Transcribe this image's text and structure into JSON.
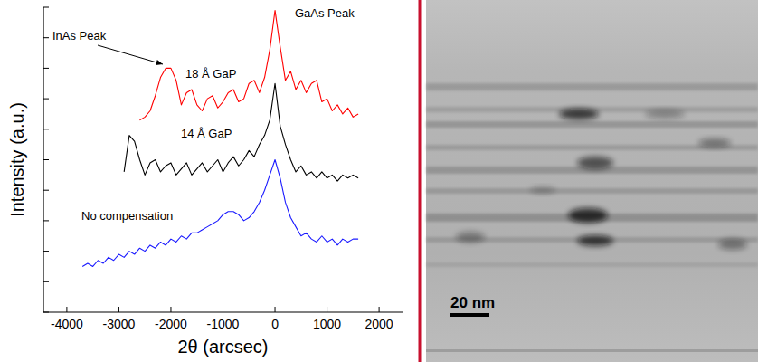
{
  "chart_data": {
    "type": "line",
    "x_label": "2θ (arcsec)",
    "y_label": "Intensity (a.u.)",
    "log": "y",
    "tick_labels": "x",
    "xlim": [
      -4450,
      2450
    ],
    "xticks": [
      -4000,
      -3000,
      -2000,
      -1000,
      0,
      1000,
      2000
    ],
    "ylim": [
      1,
      10000000000.0
    ],
    "yticks": [
      1,
      10,
      100,
      1000,
      10000,
      100000,
      1000000,
      10000000,
      100000000,
      1000000000,
      10000000000
    ],
    "annotations": [
      "InAs Peak",
      "GaAs Peak"
    ],
    "series": [
      {
        "name": "18 Å GaP",
        "color": "#ff0000",
        "x": [
          -2600,
          -2500,
          -2400,
          -2300,
          -2200,
          -2100,
          -2000,
          -1900,
          -1800,
          -1700,
          -1600,
          -1500,
          -1400,
          -1300,
          -1200,
          -1100,
          -1000,
          -900,
          -800,
          -700,
          -600,
          -500,
          -400,
          -300,
          -200,
          -100,
          0,
          100,
          200,
          300,
          400,
          500,
          600,
          700,
          800,
          900,
          1000,
          1100,
          1200,
          1300,
          1400,
          1500,
          1600
        ],
        "values": [
          2000000.0,
          2500000.0,
          4000000.0,
          12600000.0,
          50000000.0,
          100000000.0,
          100000000.0,
          40000000.0,
          6300000.0,
          15800000.0,
          20000000.0,
          6300000.0,
          4000000.0,
          10000000.0,
          12600000.0,
          5000000.0,
          7900000.0,
          15800000.0,
          20000000.0,
          7900000.0,
          10000000.0,
          31600000.0,
          40000000.0,
          15800000.0,
          50000000.0,
          400000000.0,
          7900000000.0,
          500000000.0,
          40000000.0,
          79000000.0,
          20000000.0,
          40000000.0,
          15800000.0,
          31600000.0,
          40000000.0,
          7900000.0,
          10000000.0,
          4000000.0,
          6300000.0,
          3160000.0,
          5000000.0,
          2500000.0,
          3160000.0
        ]
      },
      {
        "name": "14 Å GaP",
        "color": "#000000",
        "x": [
          -2900,
          -2800,
          -2700,
          -2600,
          -2500,
          -2400,
          -2300,
          -2200,
          -2100,
          -2000,
          -1900,
          -1800,
          -1700,
          -1600,
          -1500,
          -1400,
          -1300,
          -1200,
          -1100,
          -1000,
          -900,
          -800,
          -700,
          -600,
          -500,
          -400,
          -300,
          -200,
          -100,
          0,
          100,
          200,
          300,
          400,
          500,
          600,
          700,
          800,
          900,
          1000,
          1100,
          1200,
          1300,
          1400,
          1500,
          1600
        ],
        "values": [
          40000.0,
          630000.0,
          400000.0,
          100000.0,
          31600.0,
          79000.0,
          100000.0,
          40000.0,
          63000.0,
          79000.0,
          31600.0,
          50000.0,
          79000.0,
          31600.0,
          50000.0,
          79000.0,
          40000.0,
          63000.0,
          100000.0,
          40000.0,
          79000.0,
          126000.0,
          63000.0,
          100000.0,
          200000.0,
          126000.0,
          316000.0,
          630000.0,
          2000000.0,
          31600000.0,
          1260000.0,
          316000.0,
          100000.0,
          40000.0,
          63000.0,
          31600.0,
          40000.0,
          25000.0,
          40000.0,
          25000.0,
          31600.0,
          20000.0,
          31600.0,
          25000.0,
          31600.0,
          25000.0
        ]
      },
      {
        "name": "No compensation",
        "color": "#1a1aff",
        "x": [
          -3700,
          -3600,
          -3500,
          -3400,
          -3300,
          -3200,
          -3100,
          -3000,
          -2900,
          -2800,
          -2700,
          -2600,
          -2500,
          -2400,
          -2300,
          -2200,
          -2100,
          -2000,
          -1900,
          -1800,
          -1700,
          -1600,
          -1500,
          -1400,
          -1300,
          -1200,
          -1100,
          -1000,
          -900,
          -800,
          -700,
          -600,
          -500,
          -400,
          -300,
          -200,
          -100,
          0,
          100,
          200,
          300,
          400,
          500,
          600,
          700,
          800,
          900,
          1000,
          1100,
          1200,
          1300,
          1400,
          1500,
          1600
        ],
        "values": [
          31.6,
          40,
          31.6,
          50,
          40,
          63,
          50,
          79,
          63,
          100,
          79,
          126,
          100,
          158,
          126,
          200,
          158,
          251,
          200,
          316,
          251,
          398,
          398,
          501,
          631,
          794,
          1000,
          1585,
          1995,
          1995,
          1585,
          1000,
          1259,
          1995,
          3981,
          10000,
          31600,
          100000,
          25000,
          3981,
          1259,
          631,
          316,
          398,
          251,
          200,
          316,
          200,
          251,
          158,
          251,
          200,
          251,
          251
        ]
      }
    ]
  },
  "micrograph": {
    "scale_bar": "20 nm"
  }
}
